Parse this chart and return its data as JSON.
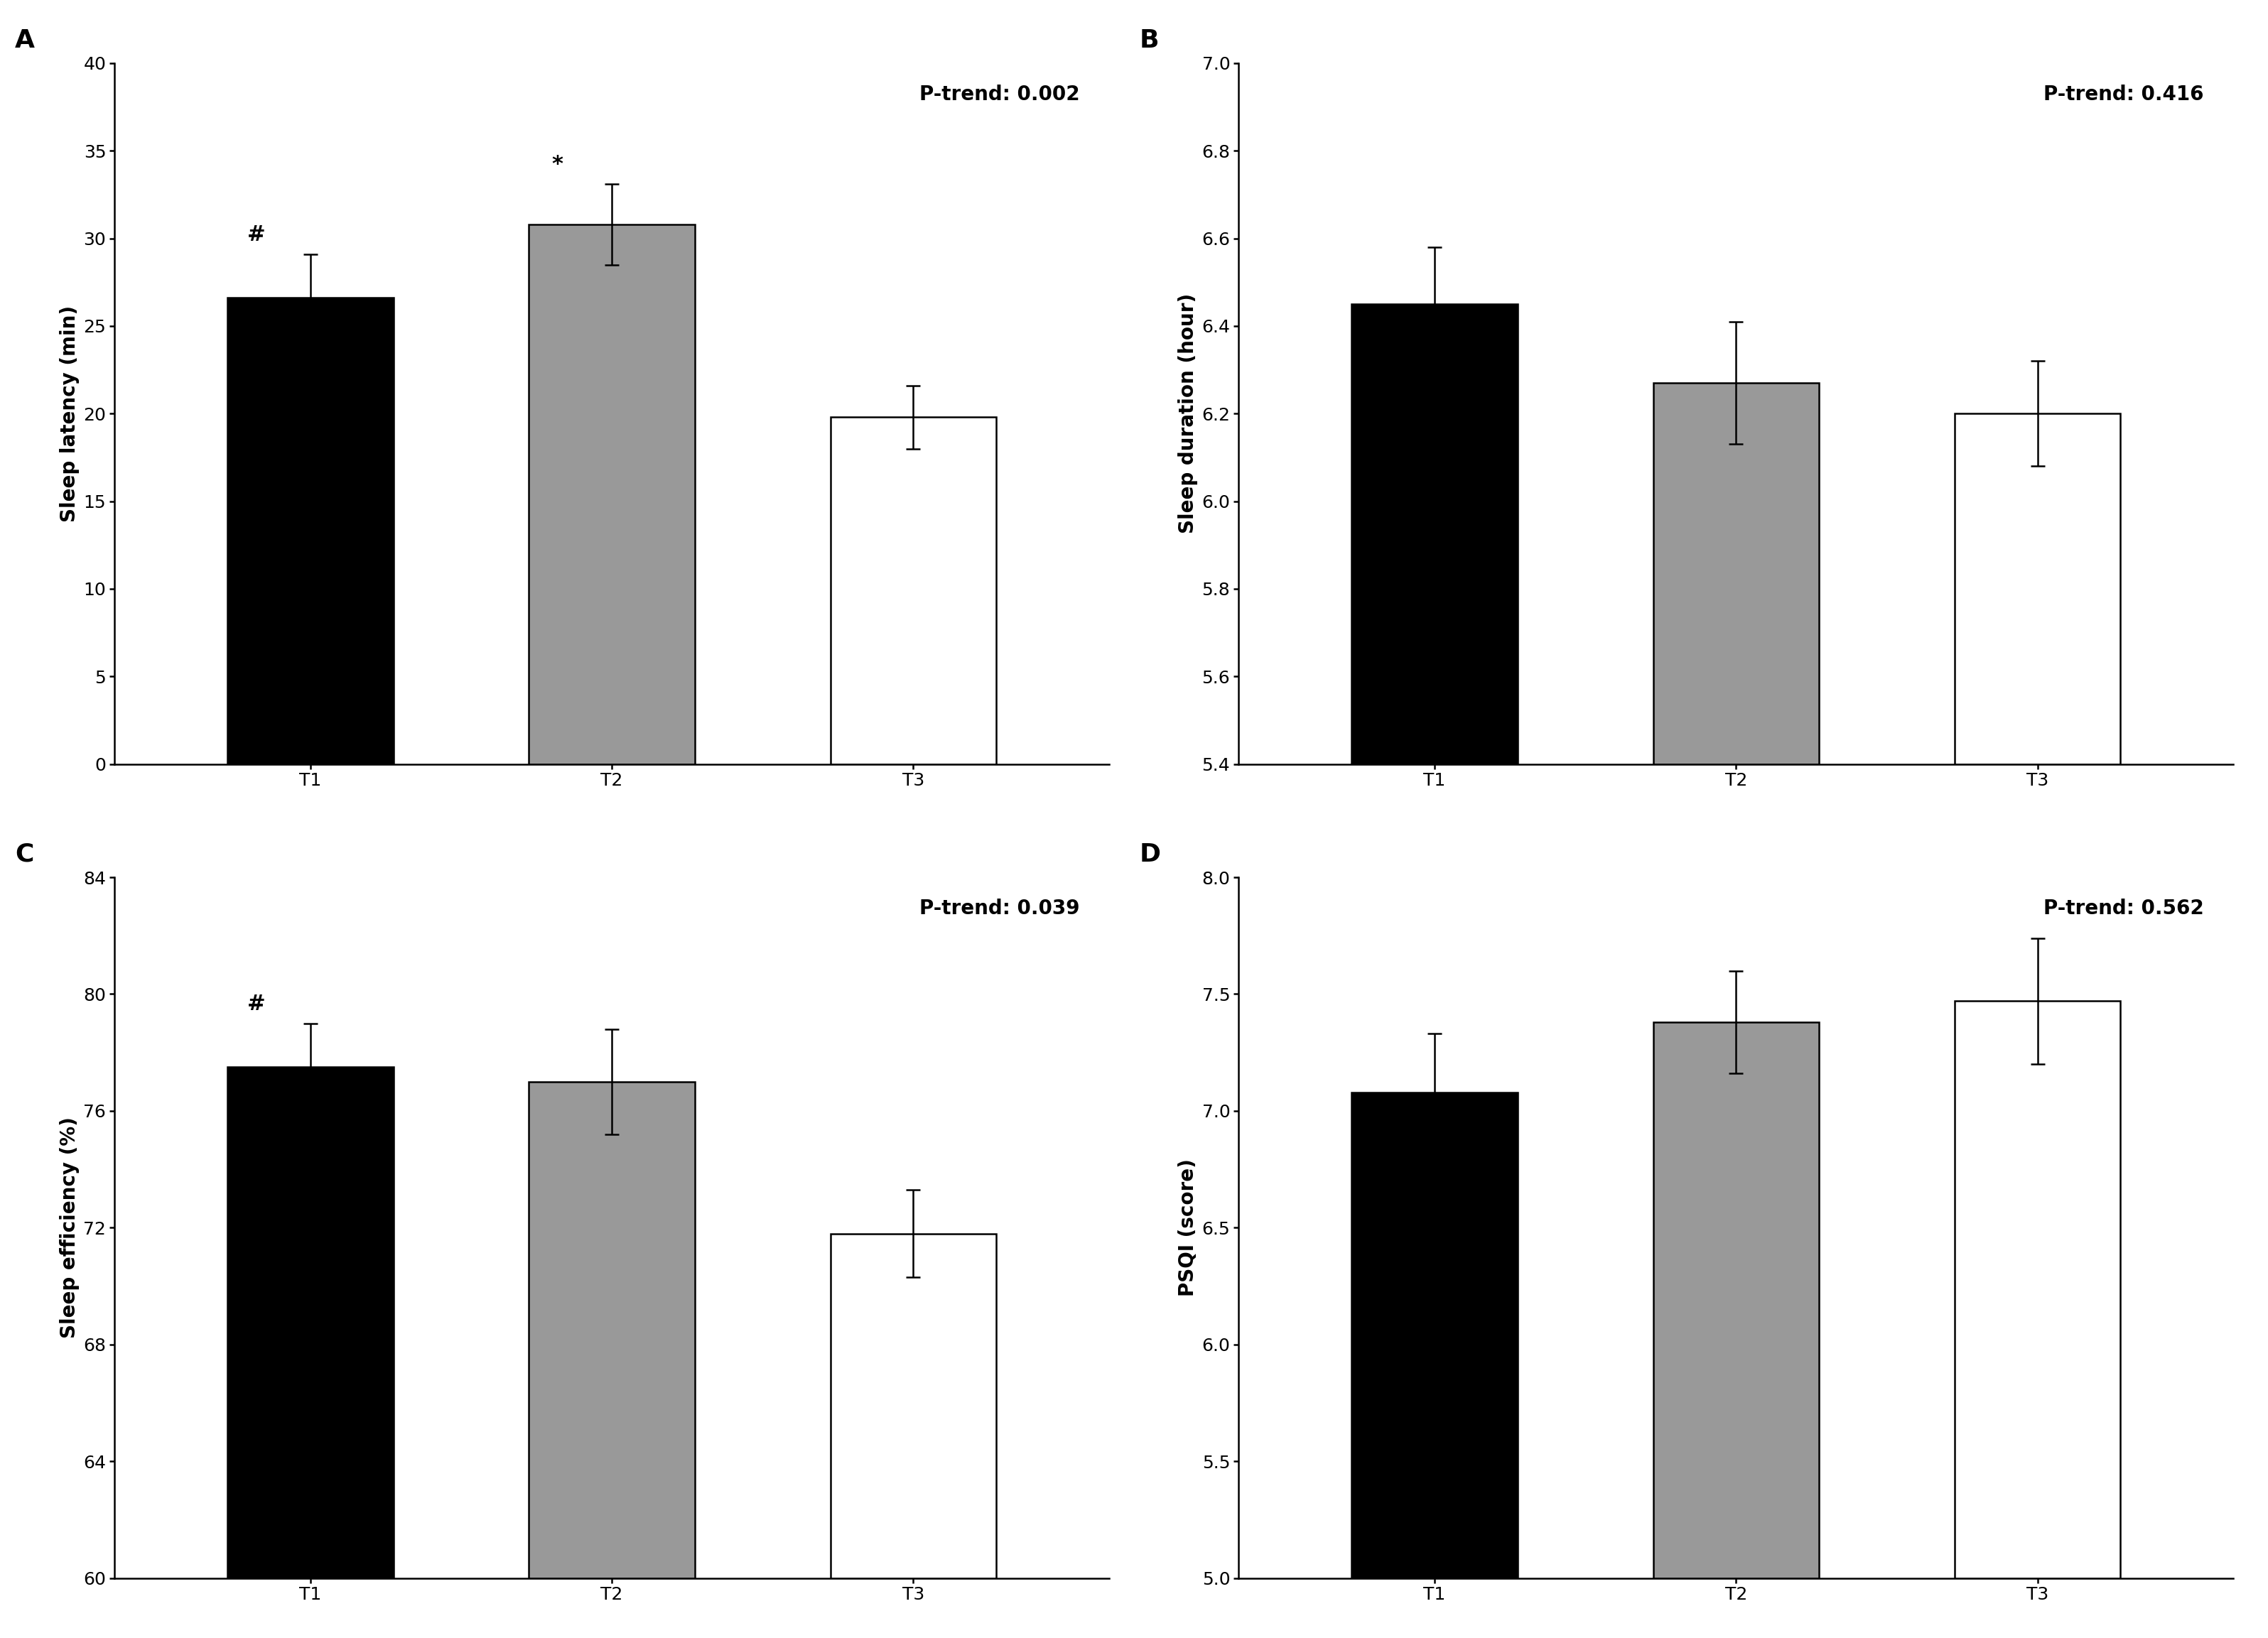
{
  "panels": [
    {
      "label": "A",
      "ylabel": "Sleep latency (min)",
      "ptrend": "P-trend: 0.002",
      "categories": [
        "T1",
        "T2",
        "T3"
      ],
      "values": [
        26.6,
        30.8,
        19.8
      ],
      "errors": [
        2.5,
        2.3,
        1.8
      ],
      "colors": [
        "#000000",
        "#999999",
        "#ffffff"
      ],
      "edgecolors": [
        "#000000",
        "#000000",
        "#000000"
      ],
      "ylim": [
        0,
        40
      ],
      "yticks": [
        0,
        5,
        10,
        15,
        20,
        25,
        30,
        35,
        40
      ],
      "bar_bottom": 0,
      "annotations": [
        "#",
        "*",
        ""
      ]
    },
    {
      "label": "B",
      "ylabel": "Sleep duration (hour)",
      "ptrend": "P-trend: 0.416",
      "categories": [
        "T1",
        "T2",
        "T3"
      ],
      "values": [
        6.45,
        6.27,
        6.2
      ],
      "errors": [
        0.13,
        0.14,
        0.12
      ],
      "colors": [
        "#000000",
        "#999999",
        "#ffffff"
      ],
      "edgecolors": [
        "#000000",
        "#000000",
        "#000000"
      ],
      "ylim": [
        5.4,
        7.0
      ],
      "yticks": [
        5.4,
        5.6,
        5.8,
        6.0,
        6.2,
        6.4,
        6.6,
        6.8,
        7.0
      ],
      "bar_bottom": 5.4,
      "annotations": [
        "",
        "",
        ""
      ]
    },
    {
      "label": "C",
      "ylabel": "Sleep efficiency (%)",
      "ptrend": "P-trend: 0.039",
      "categories": [
        "T1",
        "T2",
        "T3"
      ],
      "values": [
        77.5,
        77.0,
        71.8
      ],
      "errors": [
        1.5,
        1.8,
        1.5
      ],
      "colors": [
        "#000000",
        "#999999",
        "#ffffff"
      ],
      "edgecolors": [
        "#000000",
        "#000000",
        "#000000"
      ],
      "ylim": [
        60,
        84
      ],
      "yticks": [
        60,
        64,
        68,
        72,
        76,
        80,
        84
      ],
      "bar_bottom": 60,
      "annotations": [
        "#",
        "",
        ""
      ]
    },
    {
      "label": "D",
      "ylabel": "PSQI (score)",
      "ptrend": "P-trend: 0.562",
      "categories": [
        "T1",
        "T2",
        "T3"
      ],
      "values": [
        7.08,
        7.38,
        7.47
      ],
      "errors": [
        0.25,
        0.22,
        0.27
      ],
      "colors": [
        "#000000",
        "#999999",
        "#ffffff"
      ],
      "edgecolors": [
        "#000000",
        "#000000",
        "#000000"
      ],
      "ylim": [
        5.0,
        8.0
      ],
      "yticks": [
        5.0,
        5.5,
        6.0,
        6.5,
        7.0,
        7.5,
        8.0
      ],
      "bar_bottom": 5.0,
      "annotations": [
        "",
        "",
        ""
      ]
    }
  ],
  "bar_width": 0.55,
  "background_color": "#ffffff",
  "fontsize_label": 20,
  "fontsize_tick": 18,
  "fontsize_ptrend": 20,
  "fontsize_panel_label": 26,
  "fontsize_annotation": 22
}
